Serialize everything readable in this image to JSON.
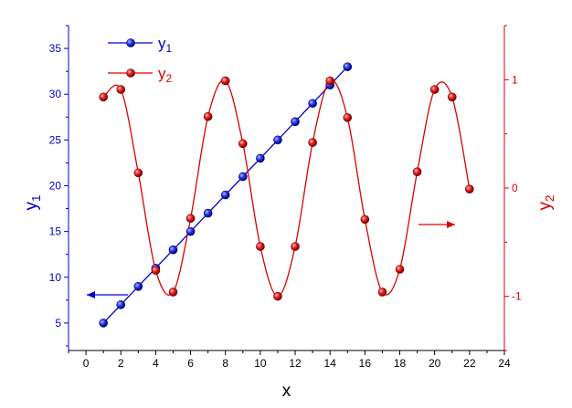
{
  "chart_data": {
    "type": "line",
    "xlabel": "x",
    "y1label": {
      "base": "y",
      "sub": "1"
    },
    "y2label": {
      "base": "y",
      "sub": "2"
    },
    "xlim": [
      -1,
      24
    ],
    "xticks": [
      0,
      2,
      4,
      6,
      8,
      10,
      12,
      14,
      16,
      18,
      20,
      22,
      24
    ],
    "y1lim": [
      2,
      37.5
    ],
    "y1ticks": [
      5,
      10,
      15,
      20,
      25,
      30,
      35
    ],
    "y2lim": [
      -1.5,
      1.5
    ],
    "y2ticks": [
      -1,
      0,
      1
    ],
    "grid": false,
    "legend_position": "top-left",
    "series": [
      {
        "name": {
          "base": "y",
          "sub": "1"
        },
        "axis": "left",
        "color": "#0000cc",
        "x": [
          1,
          2,
          3,
          4,
          5,
          6,
          7,
          8,
          9,
          10,
          11,
          12,
          13,
          14,
          15
        ],
        "y": [
          5,
          7,
          9,
          11,
          13,
          15,
          17,
          19,
          21,
          23,
          25,
          27,
          29,
          31,
          33
        ]
      },
      {
        "name": {
          "base": "y",
          "sub": "2"
        },
        "axis": "right",
        "color": "#dd0000",
        "x": [
          1,
          2,
          3,
          4,
          5,
          6,
          7,
          8,
          9,
          10,
          11,
          12,
          13,
          14,
          15,
          16,
          17,
          18,
          19,
          20,
          21,
          22
        ],
        "y": [
          0.84,
          0.91,
          0.14,
          -0.76,
          -0.96,
          -0.28,
          0.66,
          0.99,
          0.41,
          -0.54,
          -1.0,
          -0.54,
          0.42,
          0.99,
          0.65,
          -0.29,
          -0.96,
          -0.75,
          0.15,
          0.91,
          0.84,
          -0.01
        ]
      }
    ],
    "annotations": [
      {
        "type": "arrow",
        "direction": "left",
        "color": "#0000cc",
        "series": 0
      },
      {
        "type": "arrow",
        "direction": "right",
        "color": "#dd0000",
        "series": 1
      }
    ]
  }
}
